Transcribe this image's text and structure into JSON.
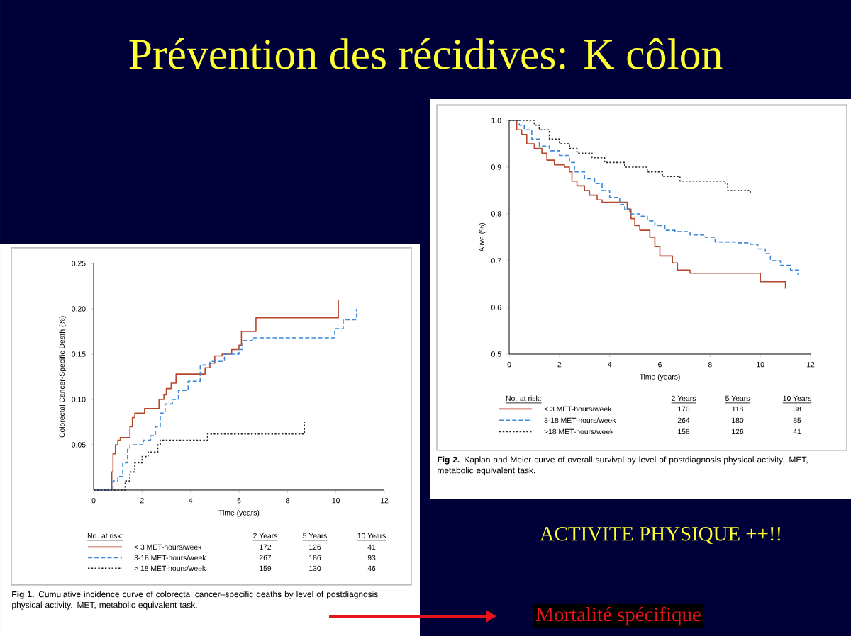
{
  "chart_data": [
    {
      "type": "step",
      "xlabel": "Time (years)",
      "ylabel": "Colorectal Cancer-Specific Death (%)",
      "xlim": [
        0,
        12
      ],
      "ylim": [
        0,
        0.25
      ],
      "xticks": [
        0,
        2,
        4,
        6,
        8,
        10,
        12
      ],
      "yticks": [
        {
          "value": 0.05,
          "label": "0.05"
        },
        {
          "value": 0.1,
          "label": "0.10"
        },
        {
          "value": 0.15,
          "label": "0.15"
        },
        {
          "value": 0.2,
          "label": "0.20"
        },
        {
          "value": 0.25,
          "label": "0.25"
        }
      ],
      "legend": "bottom",
      "legend_title": "No. at risk:",
      "series": [
        {
          "name": "< 3 MET-hours/week",
          "color": "#b5462a",
          "line_style": "solid",
          "x": [
            0,
            0.7,
            0.75,
            0.8,
            0.9,
            1.0,
            1.1,
            1.5,
            1.6,
            1.7,
            2.1,
            2.7,
            2.9,
            3.0,
            3.2,
            3.4,
            4.6,
            4.8,
            5.0,
            5.3,
            5.7,
            6.0,
            6.1,
            6.7,
            10.1
          ],
          "values": [
            0,
            0,
            0.02,
            0.04,
            0.05,
            0.055,
            0.058,
            0.07,
            0.08,
            0.085,
            0.09,
            0.1,
            0.105,
            0.112,
            0.118,
            0.128,
            0.135,
            0.14,
            0.148,
            0.15,
            0.155,
            0.16,
            0.175,
            0.19,
            0.21
          ]
        },
        {
          "name": "3-18 MET-hours/week",
          "color": "#3b8ad8",
          "line_style": "dashed",
          "x": [
            0,
            0.8,
            1.0,
            1.2,
            1.4,
            1.5,
            2.05,
            2.35,
            2.55,
            2.75,
            2.95,
            3.25,
            3.5,
            3.9,
            4.4,
            4.8,
            5.4,
            6.0,
            6.15,
            6.55,
            9.95,
            10.3,
            10.85
          ],
          "values": [
            0,
            0.01,
            0.015,
            0.03,
            0.045,
            0.05,
            0.055,
            0.06,
            0.07,
            0.085,
            0.095,
            0.1,
            0.11,
            0.12,
            0.138,
            0.142,
            0.15,
            0.155,
            0.165,
            0.168,
            0.178,
            0.188,
            0.2
          ]
        },
        {
          "name": "> 18 MET-hours/week",
          "color": "#222222",
          "line_style": "dotted",
          "x": [
            0,
            1.3,
            1.5,
            1.7,
            2.0,
            2.25,
            2.65,
            2.75,
            4.7,
            8.7
          ],
          "values": [
            0,
            0.01,
            0.02,
            0.03,
            0.037,
            0.042,
            0.05,
            0.055,
            0.062,
            0.075
          ]
        }
      ],
      "annotations": [
        "2 Years",
        "5 Years",
        "10 Years",
        "172",
        "126",
        "41",
        "267",
        "186",
        "93",
        "159",
        "130",
        "46",
        "**Fig 1.** Cumulative incidence curve of colorectal cancer–specific deaths by level of postdiagnosis physical activity. MET, metabolic equivalent task."
      ]
    },
    {
      "type": "step",
      "xlabel": "Time (years)",
      "ylabel": "Alive (%)",
      "xlim": [
        0,
        12
      ],
      "ylim": [
        0.5,
        1.0
      ],
      "xticks": [
        0,
        2,
        4,
        6,
        8,
        10,
        12
      ],
      "yticks": [
        0.5,
        0.6,
        0.7,
        0.8,
        0.9,
        {
          "value": 1,
          "label": "1.0"
        }
      ],
      "legend": "bottom",
      "legend_title": "No. at risk:",
      "series": [
        {
          "name": "< 3 MET-hours/week",
          "color": "#b5462a",
          "line_style": "solid",
          "x": [
            0,
            0.3,
            0.5,
            0.7,
            1.0,
            1.3,
            1.5,
            1.8,
            2.2,
            2.4,
            2.5,
            2.7,
            3.0,
            3.2,
            3.5,
            3.7,
            4.7,
            4.85,
            5.0,
            5.2,
            5.6,
            5.8,
            6.0,
            6.5,
            6.7,
            7.2,
            10.0,
            11.0
          ],
          "values": [
            1.0,
            0.98,
            0.97,
            0.95,
            0.94,
            0.93,
            0.915,
            0.905,
            0.9,
            0.89,
            0.87,
            0.86,
            0.85,
            0.84,
            0.83,
            0.825,
            0.81,
            0.79,
            0.775,
            0.765,
            0.75,
            0.73,
            0.71,
            0.695,
            0.68,
            0.673,
            0.655,
            0.64
          ]
        },
        {
          "name": "3-18 MET-hours/week",
          "color": "#3b8ad8",
          "line_style": "dashed",
          "x": [
            0,
            0.4,
            0.6,
            0.9,
            1.2,
            1.6,
            2.0,
            2.4,
            2.6,
            3.0,
            3.4,
            3.7,
            4.0,
            4.4,
            4.6,
            4.8,
            5.2,
            5.5,
            5.8,
            6.2,
            6.6,
            7.2,
            7.8,
            8.2,
            9.0,
            9.6,
            9.9,
            10.2,
            10.4,
            10.8,
            11.2,
            11.5
          ],
          "values": [
            1.0,
            0.99,
            0.98,
            0.96,
            0.945,
            0.935,
            0.925,
            0.91,
            0.89,
            0.875,
            0.865,
            0.85,
            0.835,
            0.82,
            0.81,
            0.8,
            0.795,
            0.785,
            0.775,
            0.765,
            0.762,
            0.755,
            0.75,
            0.74,
            0.738,
            0.735,
            0.725,
            0.715,
            0.7,
            0.69,
            0.68,
            0.67
          ]
        },
        {
          "name": ">18 MET-hours/week",
          "color": "#222222",
          "line_style": "dotted",
          "x": [
            0,
            1.0,
            1.2,
            1.6,
            2.0,
            2.4,
            2.7,
            3.3,
            3.8,
            4.6,
            5.5,
            6.1,
            6.8,
            8.6,
            8.7,
            9.6
          ],
          "values": [
            1.0,
            0.99,
            0.98,
            0.96,
            0.95,
            0.94,
            0.93,
            0.92,
            0.91,
            0.9,
            0.89,
            0.88,
            0.87,
            0.865,
            0.85,
            0.845
          ]
        }
      ],
      "annotations": [
        "2 Years",
        "5 Years",
        "10 Years",
        "170",
        "118",
        "38",
        "264",
        "180",
        "85",
        "158",
        "126",
        "41",
        "**Fig 2.** Kaplan and Meier curve of overall survival by level of postdiagnosis physical activity. MET, metabolic equivalent task."
      ]
    },
    {
      "type": "other",
      "title": "Prévention des récidives: K côlon",
      "annotations": [
        "ACTIVITE PHYSIQUE ++!!",
        "Mortalité spécifique"
      ]
    }
  ]
}
